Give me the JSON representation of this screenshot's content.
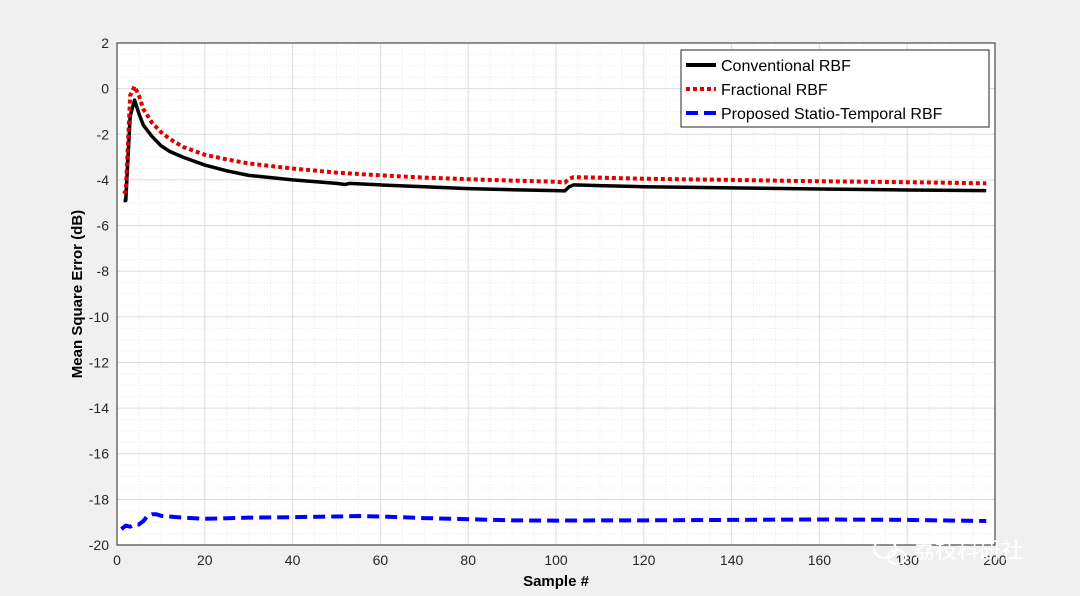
{
  "chart_data": {
    "type": "line",
    "xlabel": "Sample #",
    "ylabel": "Mean Square Error (dB)",
    "xlim": [
      0,
      200
    ],
    "ylim": [
      -20,
      2
    ],
    "xticks": [
      0,
      20,
      40,
      60,
      80,
      100,
      120,
      140,
      160,
      180,
      200
    ],
    "yticks": [
      2,
      0,
      -2,
      -4,
      -6,
      -8,
      -10,
      -12,
      -14,
      -16,
      -18,
      -20
    ],
    "grid": true,
    "minor_grid": true,
    "legend_position": "top-right",
    "series": [
      {
        "name": "Conventional RBF",
        "color": "#000000",
        "style": "solid",
        "points": [
          [
            1.5,
            -4.9
          ],
          [
            2,
            -4.9
          ],
          [
            3,
            -1.2
          ],
          [
            4,
            -0.5
          ],
          [
            5,
            -1.1
          ],
          [
            6,
            -1.6
          ],
          [
            8,
            -2.1
          ],
          [
            10,
            -2.5
          ],
          [
            12,
            -2.75
          ],
          [
            15,
            -3.0
          ],
          [
            20,
            -3.35
          ],
          [
            25,
            -3.6
          ],
          [
            30,
            -3.8
          ],
          [
            40,
            -4.0
          ],
          [
            50,
            -4.15
          ],
          [
            52,
            -4.2
          ],
          [
            53,
            -4.15
          ],
          [
            60,
            -4.22
          ],
          [
            70,
            -4.3
          ],
          [
            80,
            -4.38
          ],
          [
            90,
            -4.43
          ],
          [
            100,
            -4.47
          ],
          [
            102,
            -4.48
          ],
          [
            103,
            -4.3
          ],
          [
            104,
            -4.22
          ],
          [
            110,
            -4.25
          ],
          [
            120,
            -4.3
          ],
          [
            140,
            -4.35
          ],
          [
            160,
            -4.4
          ],
          [
            180,
            -4.44
          ],
          [
            198,
            -4.47
          ]
        ]
      },
      {
        "name": "Fractional RBF",
        "color": "#e00000",
        "style": "dotted",
        "points": [
          [
            1.5,
            -4.6
          ],
          [
            2,
            -4.5
          ],
          [
            3,
            -0.3
          ],
          [
            4,
            0.1
          ],
          [
            5,
            -0.3
          ],
          [
            6,
            -0.9
          ],
          [
            8,
            -1.5
          ],
          [
            10,
            -1.9
          ],
          [
            12,
            -2.2
          ],
          [
            15,
            -2.55
          ],
          [
            20,
            -2.9
          ],
          [
            25,
            -3.1
          ],
          [
            30,
            -3.28
          ],
          [
            40,
            -3.5
          ],
          [
            50,
            -3.68
          ],
          [
            60,
            -3.8
          ],
          [
            70,
            -3.9
          ],
          [
            80,
            -3.97
          ],
          [
            90,
            -4.03
          ],
          [
            100,
            -4.08
          ],
          [
            102,
            -4.12
          ],
          [
            103,
            -3.95
          ],
          [
            104,
            -3.88
          ],
          [
            110,
            -3.9
          ],
          [
            120,
            -3.95
          ],
          [
            140,
            -4.0
          ],
          [
            160,
            -4.06
          ],
          [
            180,
            -4.1
          ],
          [
            198,
            -4.15
          ]
        ]
      },
      {
        "name": "Proposed Statio-Temporal RBF",
        "color": "#0000ff",
        "style": "dashed",
        "points": [
          [
            1,
            -19.3
          ],
          [
            2,
            -19.15
          ],
          [
            3,
            -19.2
          ],
          [
            4,
            -19.1
          ],
          [
            5,
            -19.1
          ],
          [
            6,
            -18.95
          ],
          [
            7,
            -18.72
          ],
          [
            8,
            -18.65
          ],
          [
            9,
            -18.65
          ],
          [
            10,
            -18.72
          ],
          [
            15,
            -18.8
          ],
          [
            20,
            -18.85
          ],
          [
            25,
            -18.83
          ],
          [
            30,
            -18.8
          ],
          [
            40,
            -18.78
          ],
          [
            50,
            -18.75
          ],
          [
            55,
            -18.73
          ],
          [
            60,
            -18.75
          ],
          [
            70,
            -18.82
          ],
          [
            80,
            -18.87
          ],
          [
            90,
            -18.92
          ],
          [
            100,
            -18.93
          ],
          [
            110,
            -18.92
          ],
          [
            120,
            -18.92
          ],
          [
            140,
            -18.9
          ],
          [
            160,
            -18.88
          ],
          [
            180,
            -18.9
          ],
          [
            198,
            -18.95
          ]
        ]
      }
    ]
  },
  "watermark": {
    "icon": "wechat-icon",
    "text": "荔枝科研社"
  }
}
